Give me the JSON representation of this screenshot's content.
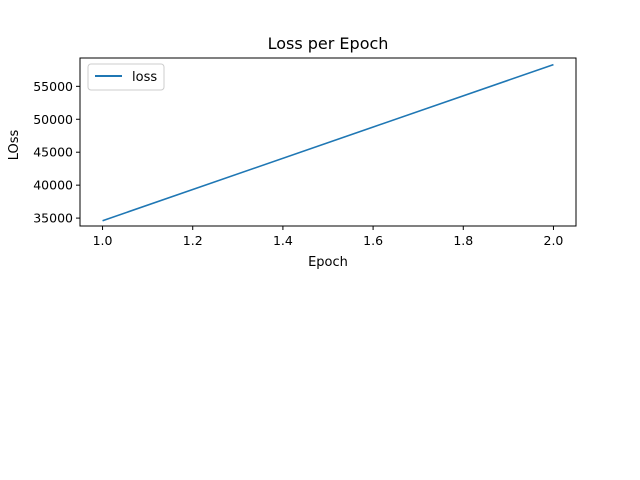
{
  "chart_data": {
    "type": "line",
    "title": "Loss per Epoch",
    "xlabel": "Epoch",
    "ylabel": "LOss",
    "xlim": [
      0.95,
      2.05
    ],
    "ylim": [
      33800,
      59300
    ],
    "xticks": [
      "1.0",
      "1.2",
      "1.4",
      "1.6",
      "1.8",
      "2.0"
    ],
    "yticks": [
      "35000",
      "40000",
      "45000",
      "50000",
      "55000"
    ],
    "legend": "top-left",
    "grid": false,
    "series": [
      {
        "name": "loss",
        "color": "#1f77b4",
        "x": [
          1.0,
          2.0
        ],
        "y": [
          34600,
          58300
        ]
      }
    ]
  }
}
